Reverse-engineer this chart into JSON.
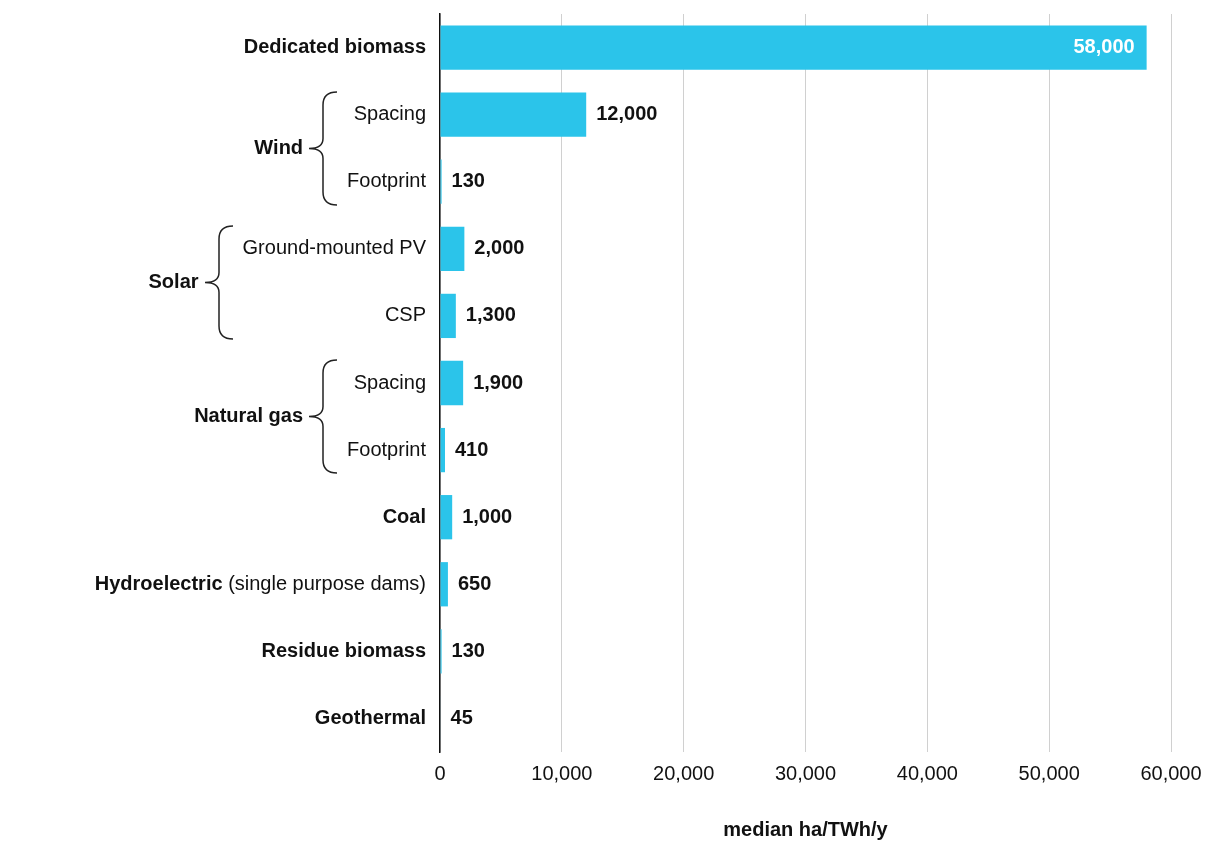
{
  "chart_data": {
    "type": "bar",
    "orientation": "horizontal",
    "xlabel": "median ha/TWh/y",
    "categories": [
      "Dedicated biomass",
      "Spacing",
      "Footprint",
      "Ground-mounted PV",
      "CSP",
      "Spacing",
      "Footprint",
      "Coal",
      "Hydroelectric (single purpose dams)",
      "Residue biomass",
      "Geothermal"
    ],
    "values": [
      58000,
      12000,
      130,
      2000,
      1300,
      1900,
      410,
      1000,
      650,
      130,
      45
    ],
    "value_labels": [
      "58,000",
      "12,000",
      "130",
      "2,000",
      "1,300",
      "1,900",
      "410",
      "1,000",
      "650",
      "130",
      "45"
    ],
    "color": "#2bc4ea",
    "xlim": [
      0,
      60000
    ],
    "xticks": [
      0,
      {
        "value": 10000,
        "label": "10,000"
      },
      {
        "value": 20000,
        "label": "20,000"
      },
      {
        "value": 30000,
        "label": "30,000"
      },
      {
        "value": 40000,
        "label": "40,000"
      },
      {
        "value": 50000,
        "label": "50,000"
      },
      {
        "value": 60000,
        "label": "60,000"
      }
    ],
    "grid": "x",
    "legend": false,
    "annotations": [
      "Wind",
      "Solar",
      "Natural gas"
    ]
  }
}
